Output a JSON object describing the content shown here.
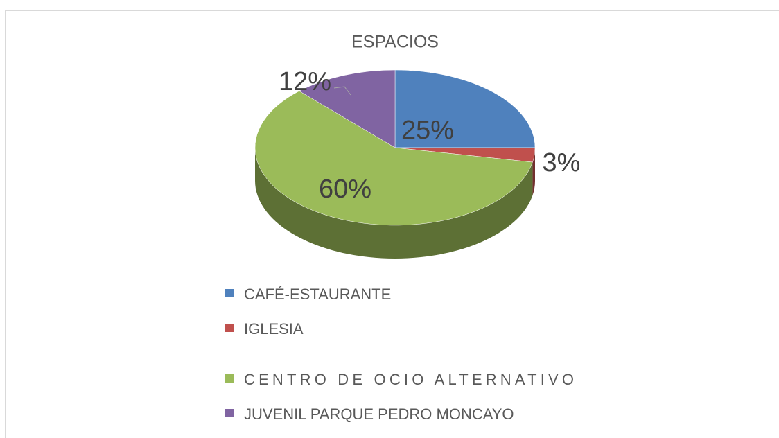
{
  "chart_data": {
    "type": "pie",
    "title": "ESPACIOS",
    "categories": [
      "CAFÉ-ESTAURANTE",
      "IGLESIA",
      "CENTRO DE OCIO ALTERNATIVO",
      "JUVENIL PARQUE PEDRO MONCAYO"
    ],
    "values": [
      25,
      3,
      60,
      12
    ],
    "value_labels": [
      "25%",
      "3%",
      "60%",
      "12%"
    ],
    "colors": [
      "#4f81bd",
      "#c0504d",
      "#9bbb59",
      "#8064a2"
    ]
  }
}
